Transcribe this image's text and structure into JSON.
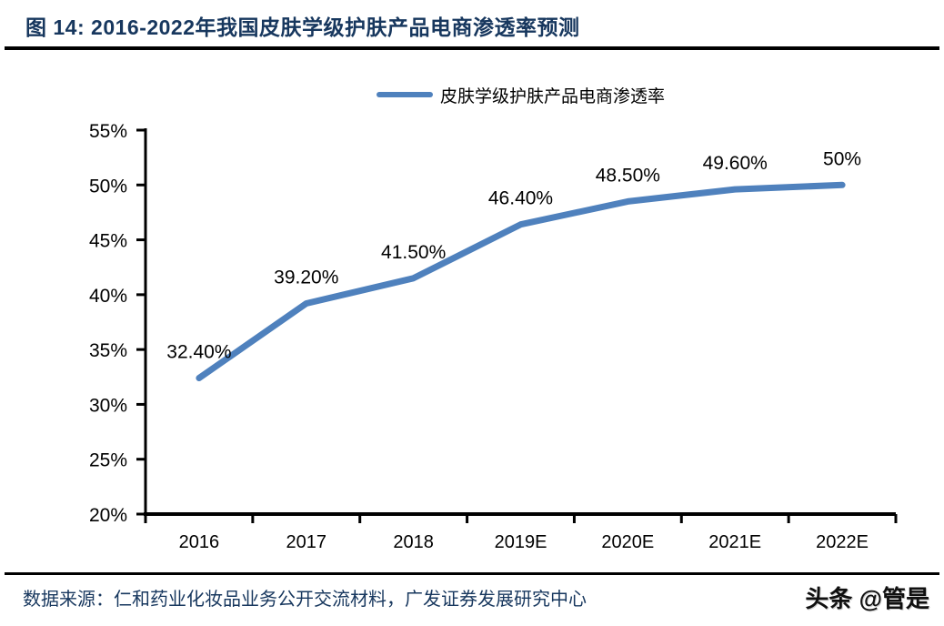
{
  "header": {
    "title": "图 14: 2016-2022年我国皮肤学级护肤产品电商渗透率预测",
    "title_color": "#17375E"
  },
  "legend": {
    "label": "皮肤学级护肤产品电商渗透率",
    "swatch_color": "#4F81BD"
  },
  "chart_data": {
    "type": "line",
    "title": "2016-2022年我国皮肤学级护肤产品电商渗透率预测",
    "categories": [
      "2016",
      "2017",
      "2018",
      "2019E",
      "2020E",
      "2021E",
      "2022E"
    ],
    "series": [
      {
        "name": "皮肤学级护肤产品电商渗透率",
        "values": [
          32.4,
          39.2,
          41.5,
          46.4,
          48.5,
          49.6,
          50.0
        ],
        "point_labels": [
          "32.40%",
          "39.20%",
          "41.50%",
          "46.40%",
          "48.50%",
          "49.60%",
          "50%"
        ],
        "color": "#4F81BD"
      }
    ],
    "y_axis": {
      "min": 20,
      "max": 55,
      "step": 5,
      "tick_labels": [
        "20%",
        "25%",
        "30%",
        "35%",
        "40%",
        "45%",
        "50%",
        "55%"
      ]
    },
    "xlabel": "",
    "ylabel": "",
    "grid": false,
    "legend_position": "top",
    "axis_color": "#000000"
  },
  "footer": {
    "source": "数据来源：仁和药业化妆品业务公开交流材料，广发证券发展研究中心",
    "watermark": "头条 @管是"
  }
}
